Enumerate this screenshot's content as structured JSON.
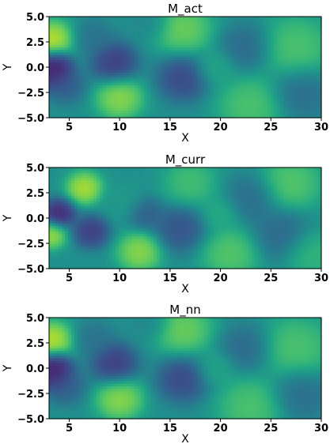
{
  "chart_data": [
    {
      "type": "heatmap",
      "title": "M_act",
      "xlabel": "X",
      "ylabel": "Y",
      "xlim": [
        3,
        30
      ],
      "ylim": [
        -5,
        5
      ],
      "xticks": [
        5,
        10,
        15,
        20,
        25,
        30
      ],
      "yticks": [
        -5.0,
        -2.5,
        0.0,
        2.5,
        5.0
      ],
      "xtick_labels": [
        "5",
        "10",
        "15",
        "20",
        "25",
        "30"
      ],
      "ytick_labels": [
        "−5.0",
        "−2.5",
        "0.0",
        "2.5",
        "5.0"
      ],
      "colormap": "viridis",
      "value_range": [
        0,
        1
      ],
      "features": [
        {
          "x": 3.3,
          "y": 2.8,
          "value": 1.0,
          "r": 1.6
        },
        {
          "x": 3.6,
          "y": 0.2,
          "value": 0.02,
          "r": 1.3
        },
        {
          "x": 3.3,
          "y": -0.6,
          "value": 0.05,
          "r": 1.4
        },
        {
          "x": 4.6,
          "y": -1.7,
          "value": 0.25,
          "r": 1.6
        },
        {
          "x": 9.5,
          "y": 0.5,
          "value": 0.1,
          "r": 1.8
        },
        {
          "x": 10.0,
          "y": -3.0,
          "value": 0.92,
          "r": 1.8
        },
        {
          "x": 7.5,
          "y": 3.0,
          "value": 0.35,
          "r": 1.5
        },
        {
          "x": 13.0,
          "y": 4.5,
          "value": 0.45,
          "r": 1.5
        },
        {
          "x": 16.3,
          "y": 3.8,
          "value": 0.85,
          "r": 2.2
        },
        {
          "x": 16.3,
          "y": -1.0,
          "value": 0.15,
          "r": 2.0
        },
        {
          "x": 19.5,
          "y": 0.0,
          "value": 0.62,
          "r": 1.6
        },
        {
          "x": 22.5,
          "y": 2.0,
          "value": 0.3,
          "r": 2.0
        },
        {
          "x": 23.0,
          "y": -3.8,
          "value": 0.78,
          "r": 2.5
        },
        {
          "x": 27.5,
          "y": 2.0,
          "value": 0.78,
          "r": 2.6
        },
        {
          "x": 28.0,
          "y": -2.5,
          "value": 0.32,
          "r": 2.2
        }
      ]
    },
    {
      "type": "heatmap",
      "title": "M_curr",
      "xlabel": "X",
      "ylabel": "Y",
      "xlim": [
        3,
        30
      ],
      "ylim": [
        -5,
        5
      ],
      "xticks": [
        5,
        10,
        15,
        20,
        25,
        30
      ],
      "yticks": [
        -5.0,
        -2.5,
        0.0,
        2.5,
        5.0
      ],
      "xtick_labels": [
        "5",
        "10",
        "15",
        "20",
        "25",
        "30"
      ],
      "ytick_labels": [
        "−5.0",
        "−2.5",
        "0.0",
        "2.5",
        "5.0"
      ],
      "colormap": "viridis",
      "value_range": [
        0,
        1
      ],
      "features": [
        {
          "x": 4.0,
          "y": 0.5,
          "value": 0.02,
          "r": 1.3
        },
        {
          "x": 3.2,
          "y": -1.6,
          "value": 0.95,
          "r": 1.2
        },
        {
          "x": 6.5,
          "y": 3.0,
          "value": 0.98,
          "r": 1.4
        },
        {
          "x": 7.2,
          "y": -1.3,
          "value": 0.1,
          "r": 1.4
        },
        {
          "x": 10.5,
          "y": 1.5,
          "value": 0.55,
          "r": 1.6
        },
        {
          "x": 12.0,
          "y": -3.3,
          "value": 0.92,
          "r": 1.7
        },
        {
          "x": 12.5,
          "y": 0.5,
          "value": 0.25,
          "r": 1.4
        },
        {
          "x": 16.0,
          "y": -1.0,
          "value": 0.2,
          "r": 2.0
        },
        {
          "x": 17.0,
          "y": 3.5,
          "value": 0.75,
          "r": 2.0
        },
        {
          "x": 20.0,
          "y": 0.5,
          "value": 0.65,
          "r": 1.5
        },
        {
          "x": 21.0,
          "y": -3.5,
          "value": 0.8,
          "r": 2.2
        },
        {
          "x": 23.0,
          "y": 2.0,
          "value": 0.32,
          "r": 2.0
        },
        {
          "x": 26.0,
          "y": -1.5,
          "value": 0.3,
          "r": 2.2
        },
        {
          "x": 27.0,
          "y": 3.5,
          "value": 0.8,
          "r": 2.3
        },
        {
          "x": 29.0,
          "y": -3.5,
          "value": 0.7,
          "r": 2.0
        }
      ]
    },
    {
      "type": "heatmap",
      "title": "M_nn",
      "xlabel": "X",
      "ylabel": "Y",
      "xlim": [
        3,
        30
      ],
      "ylim": [
        -5,
        5
      ],
      "xticks": [
        5,
        10,
        15,
        20,
        25,
        30
      ],
      "yticks": [
        -5.0,
        -2.5,
        0.0,
        2.5,
        5.0
      ],
      "xtick_labels": [
        "5",
        "10",
        "15",
        "20",
        "25",
        "30"
      ],
      "ytick_labels": [
        "−5.0",
        "−2.5",
        "0.0",
        "2.5",
        "5.0"
      ],
      "colormap": "viridis",
      "value_range": [
        0,
        1
      ],
      "features": [
        {
          "x": 3.3,
          "y": 2.8,
          "value": 1.0,
          "r": 1.6
        },
        {
          "x": 3.6,
          "y": 0.2,
          "value": 0.02,
          "r": 1.3
        },
        {
          "x": 3.3,
          "y": -0.6,
          "value": 0.05,
          "r": 1.4
        },
        {
          "x": 4.6,
          "y": -1.7,
          "value": 0.25,
          "r": 1.6
        },
        {
          "x": 9.5,
          "y": 0.5,
          "value": 0.1,
          "r": 1.8
        },
        {
          "x": 10.0,
          "y": -3.0,
          "value": 0.92,
          "r": 1.8
        },
        {
          "x": 7.5,
          "y": 3.0,
          "value": 0.35,
          "r": 1.5
        },
        {
          "x": 13.0,
          "y": 4.5,
          "value": 0.45,
          "r": 1.5
        },
        {
          "x": 16.3,
          "y": 3.8,
          "value": 0.85,
          "r": 2.2
        },
        {
          "x": 16.3,
          "y": -1.0,
          "value": 0.15,
          "r": 2.0
        },
        {
          "x": 19.5,
          "y": 0.0,
          "value": 0.62,
          "r": 1.6
        },
        {
          "x": 22.5,
          "y": 2.0,
          "value": 0.3,
          "r": 2.0
        },
        {
          "x": 23.0,
          "y": -3.8,
          "value": 0.78,
          "r": 2.5
        },
        {
          "x": 27.5,
          "y": 2.0,
          "value": 0.78,
          "r": 2.6
        },
        {
          "x": 28.0,
          "y": -2.5,
          "value": 0.32,
          "r": 2.2
        }
      ]
    }
  ]
}
